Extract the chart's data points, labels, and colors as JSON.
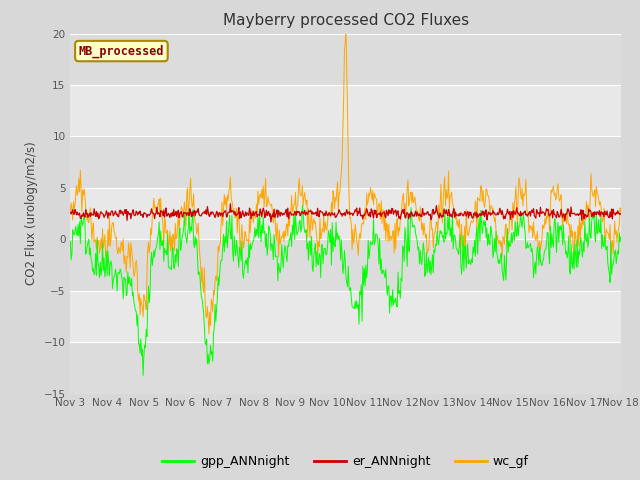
{
  "title": "Mayberry processed CO2 Fluxes",
  "ylabel": "CO2 Flux (urology/m2/s)",
  "ylim": [
    -15,
    20
  ],
  "yticks": [
    -15,
    -10,
    -5,
    0,
    5,
    10,
    15,
    20
  ],
  "xtick_labels": [
    "Nov 3",
    "Nov 4",
    "Nov 5",
    "Nov 6",
    "Nov 7",
    "Nov 8",
    "Nov 9",
    "Nov 10",
    "Nov 11",
    "Nov 12",
    "Nov 13",
    "Nov 14",
    "Nov 15",
    "Nov 16",
    "Nov 17",
    "Nov 18"
  ],
  "series_colors": {
    "gpp_ANNnight": "#00ff00",
    "er_ANNnight": "#cc0000",
    "wc_gf": "#ffa500"
  },
  "legend_label": "MB_processed",
  "legend_bg": "#ffffcc",
  "legend_border": "#cc9900",
  "bg_color": "#d8d8d8",
  "plot_bg": "#e8e8e8",
  "grid_color": "#ffffff",
  "band_colors": [
    "#e0e0e0",
    "#d0d0d0"
  ],
  "seed": 42,
  "title_fontsize": 11,
  "tick_fontsize": 7.5,
  "ylabel_fontsize": 8.5
}
